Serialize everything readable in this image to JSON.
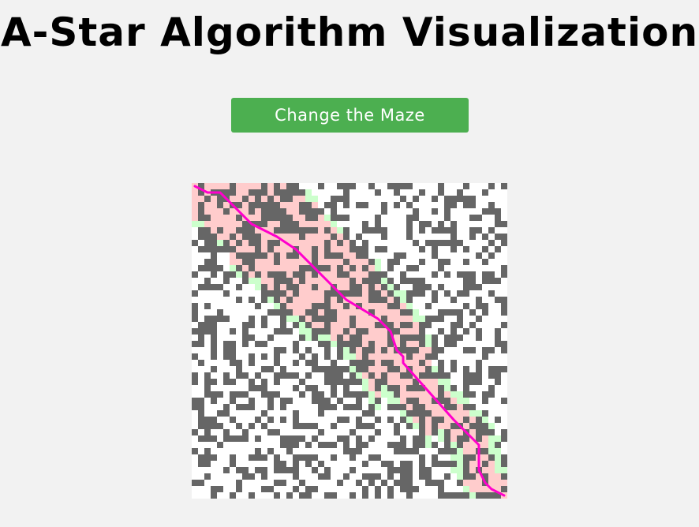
{
  "page": {
    "title": "A-Star Algorithm Visualization"
  },
  "controls": {
    "change_maze_label": "Change the Maze"
  },
  "maze": {
    "rows": 50,
    "cols": 50,
    "start": [
      0,
      0
    ],
    "goal": [
      49,
      49
    ],
    "colors": {
      "wall": "#666666",
      "open": "#ffffff",
      "closed_set": "#ffcccc",
      "open_set": "#ccffcc",
      "path": "#ff00cc",
      "button": "#4caf50"
    }
  }
}
